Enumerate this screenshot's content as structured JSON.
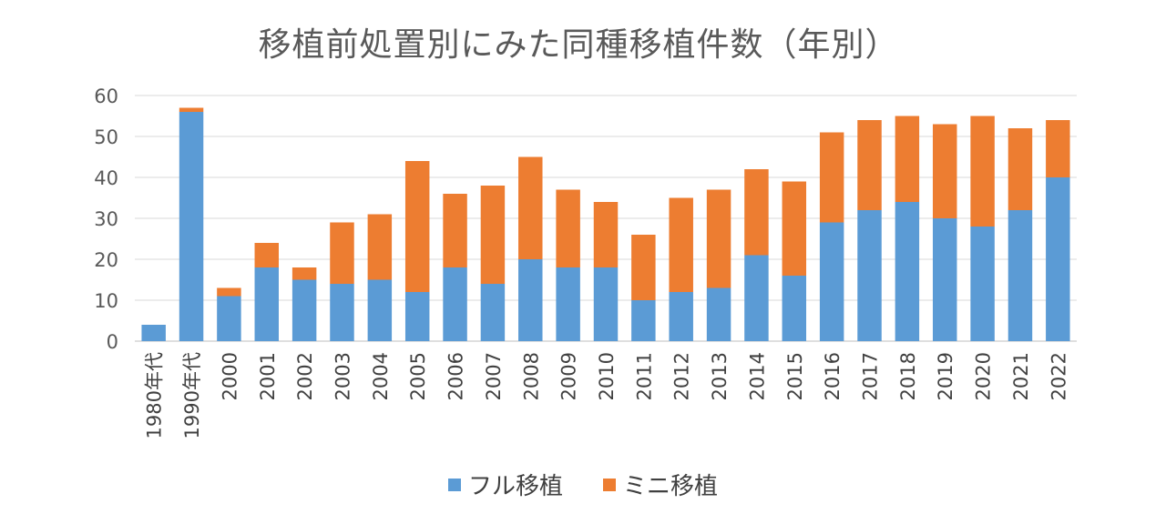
{
  "chart_data": {
    "type": "bar",
    "stacked": true,
    "title": "移植前処置別にみた同種移植件数（年別）",
    "categories": [
      "1980年代",
      "1990年代",
      "2000",
      "2001",
      "2002",
      "2003",
      "2004",
      "2005",
      "2006",
      "2007",
      "2008",
      "2009",
      "2010",
      "2011",
      "2012",
      "2013",
      "2014",
      "2015",
      "2016",
      "2017",
      "2018",
      "2019",
      "2020",
      "2021",
      "2022"
    ],
    "series": [
      {
        "name": "フル移植",
        "color": "#5B9BD5",
        "values": [
          4,
          56,
          11,
          18,
          15,
          14,
          15,
          12,
          18,
          14,
          20,
          18,
          18,
          10,
          12,
          13,
          21,
          16,
          29,
          32,
          34,
          30,
          28,
          32,
          40
        ]
      },
      {
        "name": "ミニ移植",
        "color": "#ED7D31",
        "values": [
          0,
          1,
          2,
          6,
          3,
          15,
          16,
          32,
          18,
          24,
          25,
          19,
          16,
          16,
          23,
          24,
          21,
          23,
          22,
          22,
          21,
          23,
          27,
          20,
          14
        ]
      }
    ],
    "ylim": [
      0,
      60
    ],
    "yticks": [
      0,
      10,
      20,
      30,
      40,
      50,
      60
    ],
    "grid": true,
    "legend_position": "bottom"
  }
}
